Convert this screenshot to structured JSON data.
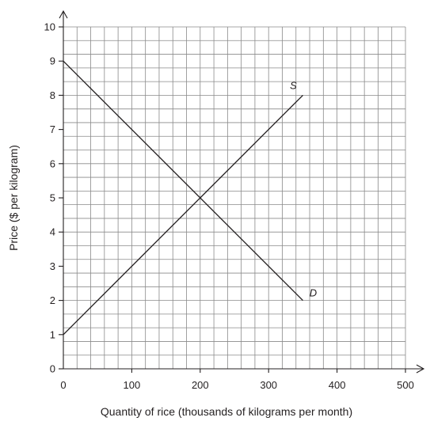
{
  "chart_data": {
    "type": "line",
    "title": "",
    "xlabel": "Quantity of rice (thousands of kilograms per month)",
    "ylabel": "Price ($ per kilogram)",
    "xlim": [
      0,
      500
    ],
    "ylim": [
      0,
      10
    ],
    "x_ticks": [
      "0",
      "100",
      "200",
      "300",
      "400",
      "500"
    ],
    "y_ticks": [
      "0",
      "1",
      "2",
      "3",
      "4",
      "5",
      "6",
      "7",
      "8",
      "9",
      "10"
    ],
    "grid": true,
    "grid_minor_x_step": 20,
    "grid_minor_y_step": 0.4,
    "series": [
      {
        "name": "S",
        "x": [
          0,
          350
        ],
        "y": [
          1,
          8
        ]
      },
      {
        "name": "D",
        "x": [
          0,
          350
        ],
        "y": [
          9,
          2
        ]
      }
    ]
  }
}
